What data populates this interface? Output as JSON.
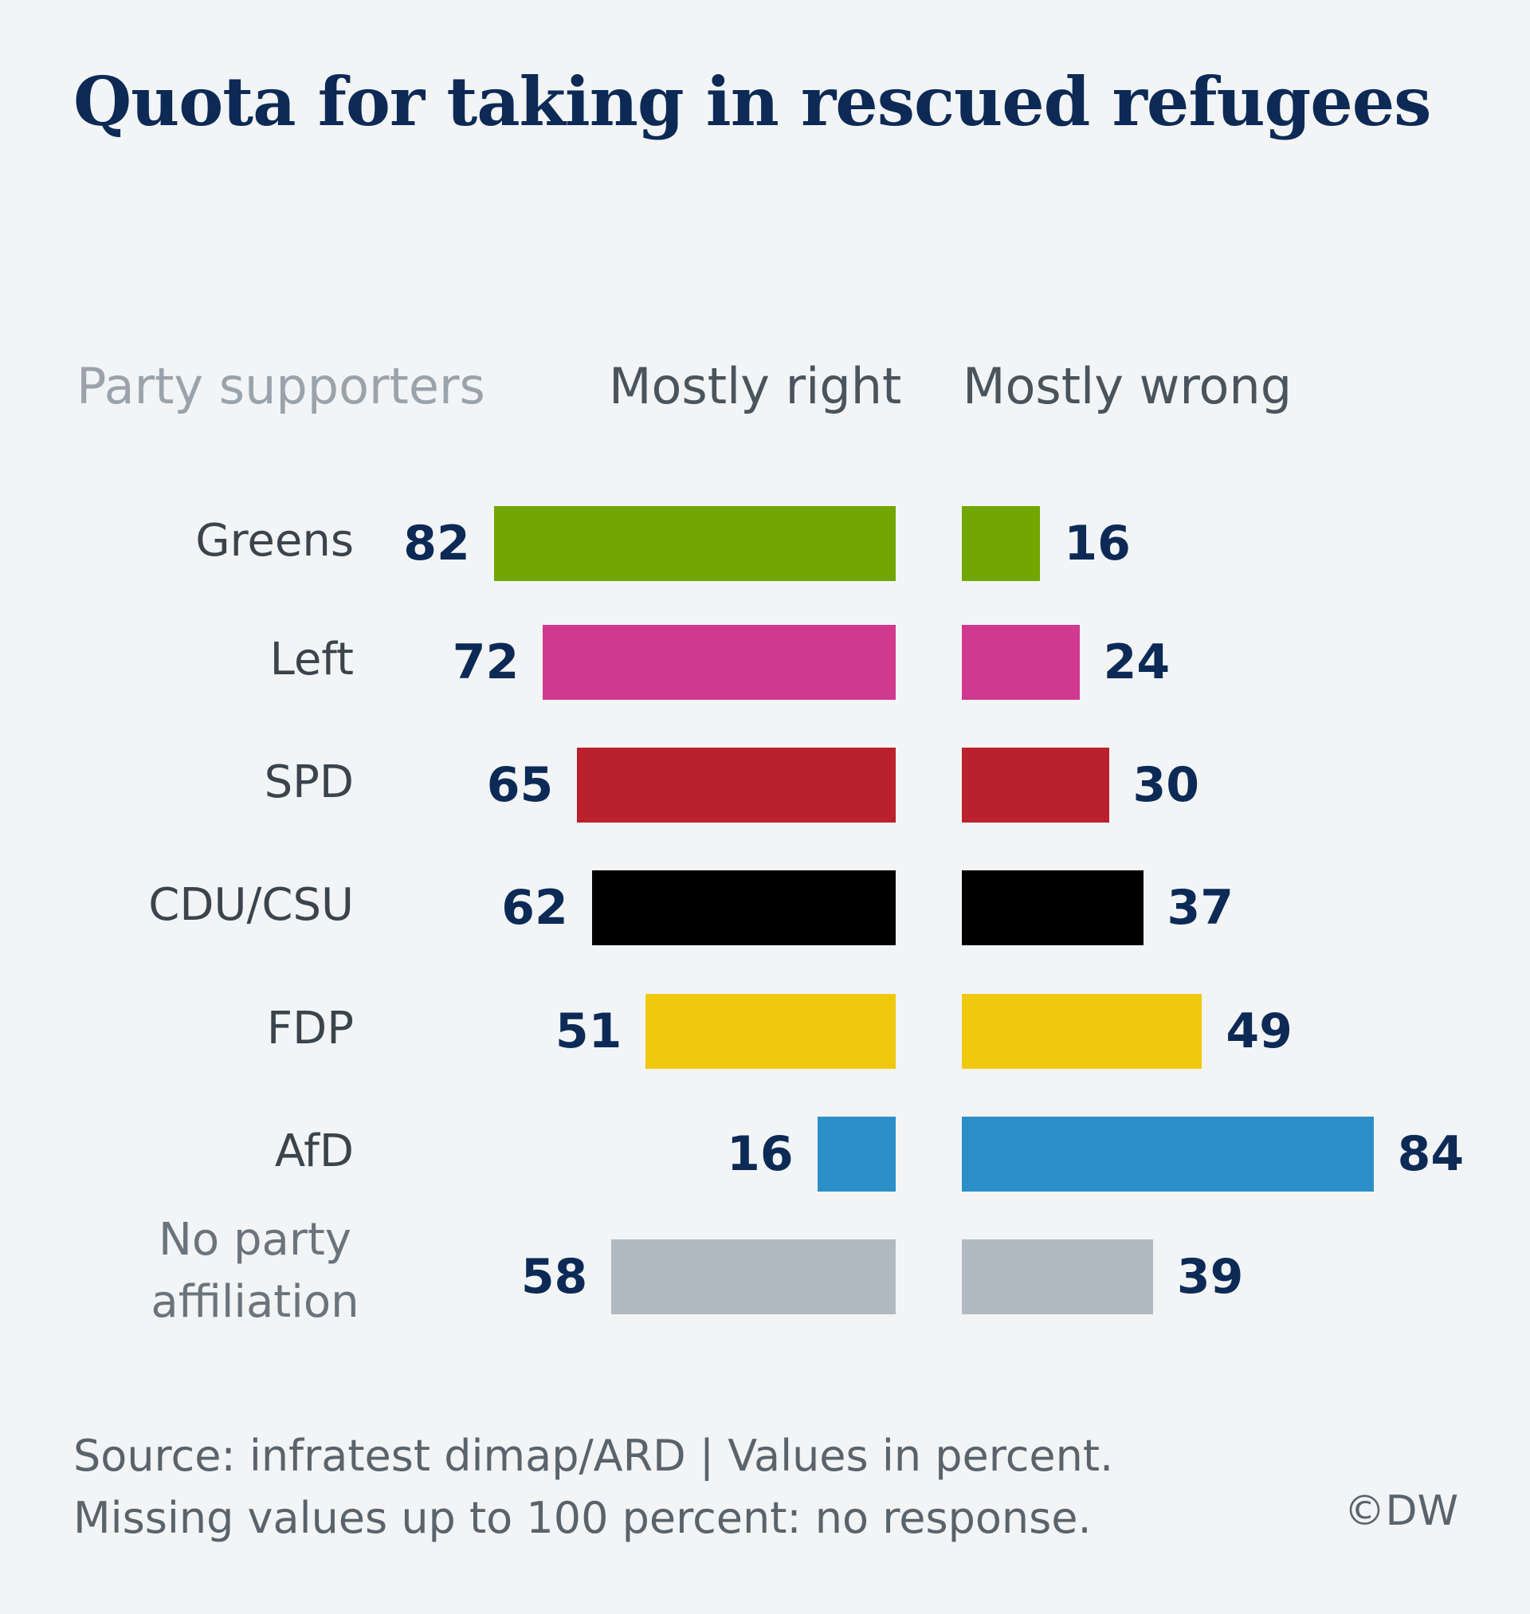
{
  "title": "Quota for taking in rescued refugees",
  "headers": {
    "party": "Party supporters",
    "right": "Mostly right",
    "wrong": "Mostly wrong"
  },
  "chart_data": {
    "type": "bar",
    "orientation": "horizontal-diverging",
    "categories": [
      "Greens",
      "Left",
      "SPD",
      "CDU/CSU",
      "FDP",
      "AfD",
      "No party affiliation"
    ],
    "series": [
      {
        "name": "Mostly right",
        "values": [
          82,
          72,
          65,
          62,
          51,
          16,
          58
        ]
      },
      {
        "name": "Mostly wrong",
        "values": [
          16,
          24,
          30,
          37,
          49,
          84,
          39
        ]
      }
    ],
    "colors": [
      "#72a600",
      "#d0398d",
      "#bb212c",
      "#000000",
      "#f0c90f",
      "#2c8fc9",
      "#b1bac2"
    ],
    "xlim": [
      0,
      100
    ],
    "grid": false,
    "legend": "none"
  },
  "source_line1": "Source: infratest dimap/ARD | Values in percent.",
  "source_line2": "Missing values up to 100 percent: no response.",
  "copyright": "©DW"
}
